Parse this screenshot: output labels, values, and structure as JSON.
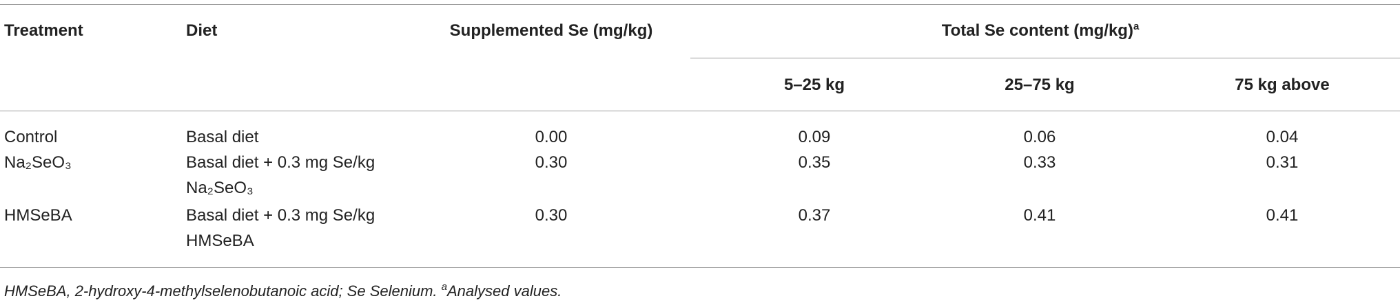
{
  "table": {
    "header": [
      "Treatment",
      "Diet",
      "Supplemented Se (mg/kg)"
    ],
    "group_header": {
      "label": "Total Se content (mg/kg)",
      "marker": "a"
    },
    "subheaders": [
      "5–25 kg",
      "25–75 kg",
      "75 kg above"
    ],
    "rows": [
      {
        "treatment": "Control",
        "diet": [
          "Basal diet"
        ],
        "values": [
          "0.00",
          "0.09",
          "0.06",
          "0.04"
        ]
      },
      {
        "treatment": "Na₂SeO₃",
        "diet": [
          "Basal diet + 0.3 mg Se/kg",
          "Na₂SeO₃"
        ],
        "values": [
          "0.30",
          "0.35",
          "0.33",
          "0.31"
        ]
      },
      {
        "treatment": "HMSeBA",
        "diet": [
          "Basal diet + 0.3 mg Se/kg",
          "HMSeBA"
        ],
        "values": [
          "0.30",
          "0.37",
          "0.41",
          "0.41"
        ]
      }
    ],
    "footnote": {
      "text": "HMSeBA, 2-hydroxy-4-methylselenobutanoic acid; Se Selenium. ",
      "marker": "a",
      "note": "Analysed values."
    }
  }
}
